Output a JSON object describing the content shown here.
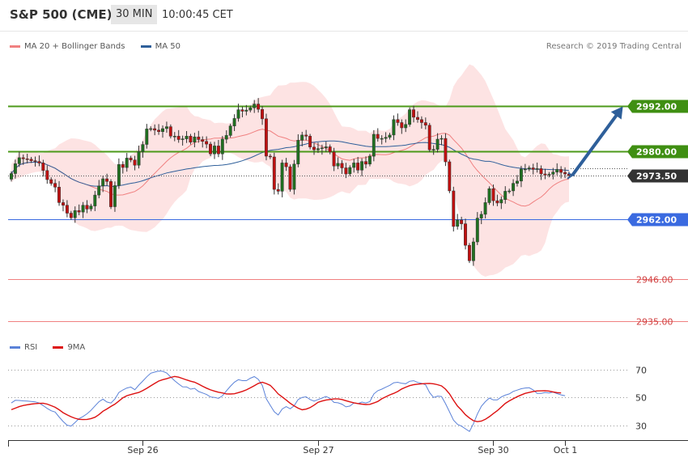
{
  "header": {
    "title": "S&P 500 (CME)",
    "timeframe": "30 MIN",
    "time": "10:00:45 CET"
  },
  "legend": {
    "ma20_label": "MA 20 + Bollinger Bands",
    "ma50_label": "MA 50",
    "ma20_color": "#f08080",
    "ma50_color": "#2e5f9a"
  },
  "copyright": "Research © 2019 Trading Central",
  "rsi_legend": {
    "rsi_label": "RSI",
    "ma_label": "9MA",
    "rsi_color": "#5b82d8",
    "ma_color": "#dd1111"
  },
  "levels": [
    {
      "value": 2992.0,
      "label": "2992.00",
      "style": "green"
    },
    {
      "value": 2980.0,
      "label": "2980.00",
      "style": "green"
    },
    {
      "value": 2973.5,
      "label": "2973.50",
      "style": "current"
    },
    {
      "value": 2962.0,
      "label": "2962.00",
      "style": "blue"
    },
    {
      "value": 2946.0,
      "label": "2946.00",
      "style": "red"
    },
    {
      "value": 2935.0,
      "label": "2935.00",
      "style": "red"
    }
  ],
  "chart_data": [
    {
      "type": "candlestick",
      "title": "S&P 500 (CME)",
      "interval": "30 MIN",
      "ylim": [
        2932,
        3008
      ],
      "x_labels": [
        "Sep 26",
        "Sep 27",
        "Sep 30",
        "Oct 1"
      ],
      "forecast": {
        "from": 2973.5,
        "to": 2992.0
      },
      "series_close": [
        2974.0,
        2976.6,
        2978.2,
        2977.9,
        2977.8,
        2977.4,
        2977.2,
        2976.8,
        2974.8,
        2972.4,
        2971.4,
        2970.4,
        2966.3,
        2965.6,
        2963.5,
        2962.3,
        2964.2,
        2963.8,
        2965.6,
        2964.6,
        2965.4,
        2968.3,
        2970.7,
        2972.6,
        2971.9,
        2965.2,
        2970.8,
        2976.4,
        2975.6,
        2978.1,
        2977.6,
        2976.2,
        2979.8,
        2981.7,
        2985.8,
        2985.9,
        2985.5,
        2985.1,
        2985.9,
        2986.4,
        2983.9,
        2983.9,
        2983.0,
        2983.2,
        2983.9,
        2982.3,
        2983.7,
        2983.0,
        2982.5,
        2981.8,
        2979.2,
        2981.3,
        2979.2,
        2983.1,
        2984.1,
        2986.6,
        2988.6,
        2990.9,
        2990.5,
        2990.8,
        2991.4,
        2992.4,
        2991.0,
        2988.5,
        2978.6,
        2978.4,
        2969.8,
        2969.3,
        2976.8,
        2975.8,
        2969.8,
        2976.5,
        2982.8,
        2984.2,
        2983.9,
        2981.0,
        2980.3,
        2980.6,
        2980.8,
        2981.1,
        2979.7,
        2976.0,
        2976.7,
        2975.5,
        2973.9,
        2975.6,
        2976.8,
        2974.9,
        2977.2,
        2976.5,
        2978.6,
        2984.4,
        2983.3,
        2983.3,
        2983.6,
        2984.2,
        2988.3,
        2987.5,
        2986.1,
        2987.0,
        2990.9,
        2988.9,
        2988.3,
        2987.5,
        2986.8,
        2980.3,
        2980.4,
        2983.1,
        2983.3,
        2977.1,
        2969.4,
        2960.0,
        2961.7,
        2960.7,
        2955.0,
        2950.9,
        2955.9,
        2962.2,
        2963.2,
        2966.3,
        2970.0,
        2966.8,
        2966.2,
        2967.1,
        2969.3,
        2969.4,
        2971.4,
        2972.0,
        2975.2,
        2975.2,
        2975.5,
        2975.1,
        2975.3,
        2973.9,
        2973.6,
        2973.8,
        2974.4,
        2975.1,
        2974.3,
        2973.9,
        2973.5
      ]
    },
    {
      "type": "line",
      "title": "RSI",
      "ylim": [
        20,
        80
      ],
      "yticks": [
        30,
        50,
        70
      ],
      "series": [
        {
          "name": "RSI",
          "values": [
            45.9,
            47.8,
            47.7,
            47.4,
            47.3,
            47.0,
            46.7,
            45.8,
            44.0,
            42.0,
            40.3,
            39.4,
            35.8,
            32.6,
            30.0,
            29.3,
            31.9,
            34.7,
            36.2,
            38.1,
            40.6,
            43.8,
            46.8,
            48.6,
            46.6,
            45.8,
            48.7,
            53.4,
            55.2,
            56.6,
            57.3,
            55.4,
            58.7,
            61.6,
            64.6,
            67.2,
            68.0,
            68.8,
            68.6,
            67.4,
            64.5,
            61.8,
            59.5,
            57.5,
            57.4,
            55.8,
            56.4,
            54.1,
            53.1,
            52.0,
            50.2,
            49.9,
            49.2,
            51.0,
            54.6,
            57.9,
            60.8,
            62.6,
            61.9,
            61.9,
            63.6,
            64.8,
            62.8,
            58.4,
            48.9,
            44.2,
            39.6,
            37.3,
            41.6,
            43.3,
            41.7,
            43.9,
            48.3,
            49.9,
            50.3,
            48.4,
            47.2,
            48.4,
            49.4,
            50.6,
            49.2,
            46.3,
            46.0,
            45.0,
            43.1,
            43.7,
            45.9,
            45.4,
            46.5,
            45.9,
            46.8,
            52.4,
            54.7,
            55.8,
            57.2,
            58.5,
            60.4,
            60.7,
            60.0,
            59.7,
            61.4,
            61.8,
            60.6,
            59.9,
            58.9,
            53.3,
            49.8,
            50.8,
            50.5,
            45.4,
            39.5,
            33.6,
            30.6,
            29.3,
            27.4,
            25.5,
            31.0,
            38.0,
            43.5,
            46.8,
            49.4,
            48.1,
            48.1,
            50.2,
            51.5,
            52.4,
            54.2,
            55.1,
            56.1,
            56.6,
            56.8,
            55.3,
            52.8,
            52.8,
            53.4,
            53.1,
            53.7,
            52.6,
            51.7,
            51.1
          ]
        },
        {
          "name": "9MA",
          "values": [
            41.1,
            42.2,
            43.3,
            44.1,
            44.6,
            45.1,
            45.4,
            45.6,
            45.7,
            45.1,
            44.0,
            42.8,
            41.0,
            38.9,
            37.4,
            36.0,
            34.9,
            34.2,
            34.0,
            34.1,
            34.7,
            35.7,
            37.6,
            40.0,
            41.6,
            43.4,
            45.1,
            47.3,
            49.6,
            51.1,
            51.9,
            52.7,
            53.4,
            54.8,
            56.4,
            58.2,
            59.9,
            61.6,
            62.6,
            63.3,
            64.2,
            64.9,
            64.4,
            63.4,
            62.4,
            61.5,
            60.8,
            59.4,
            57.9,
            56.5,
            55.3,
            54.4,
            53.6,
            53.1,
            52.4,
            52.3,
            52.5,
            53.3,
            54.2,
            55.3,
            56.7,
            58.3,
            59.9,
            60.7,
            59.8,
            58.5,
            55.6,
            52.4,
            50.2,
            48.0,
            45.7,
            43.8,
            42.2,
            41.0,
            41.5,
            42.6,
            44.3,
            46.4,
            47.3,
            48.0,
            48.4,
            48.8,
            48.8,
            48.4,
            47.5,
            46.7,
            46.0,
            45.5,
            45.1,
            44.8,
            44.9,
            45.9,
            47.0,
            48.9,
            50.3,
            51.7,
            52.8,
            54.1,
            55.9,
            57.2,
            58.3,
            59.0,
            59.4,
            59.6,
            59.8,
            59.9,
            59.6,
            59.0,
            58.1,
            55.8,
            52.4,
            47.8,
            43.7,
            40.8,
            37.5,
            35.1,
            33.2,
            32.5,
            32.9,
            34.2,
            36.1,
            38.3,
            40.4,
            42.9,
            45.6,
            47.4,
            48.9,
            50.4,
            51.6,
            52.8,
            53.4,
            54.1,
            54.5,
            54.6,
            54.7,
            54.4,
            53.8,
            53.3,
            53.1
          ]
        }
      ]
    }
  ]
}
